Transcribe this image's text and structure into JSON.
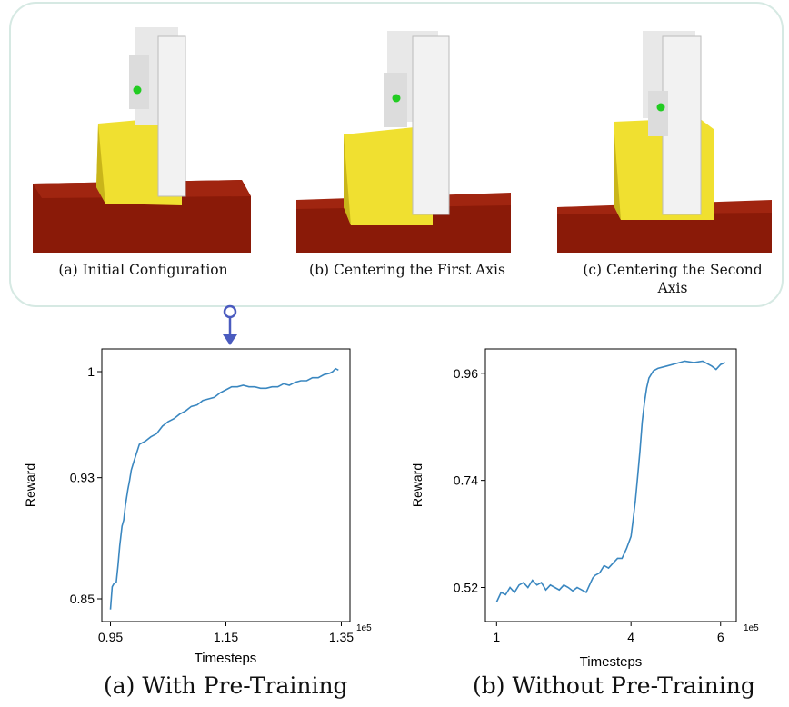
{
  "panels": [
    {
      "caption": "(a) Initial Configuration"
    },
    {
      "caption": "(b) Centering the First Axis"
    },
    {
      "caption": "(c) Centering the Second Axis"
    }
  ],
  "colors": {
    "line": "#3a87c0",
    "arrow": "#4a5bbf",
    "panel_border": "#d6e9e3",
    "cube": "#f0e030",
    "table": "#8a1a08",
    "gripper": "#e8e8e8"
  },
  "chart_data": [
    {
      "type": "line",
      "title": "",
      "xlabel": "Timesteps",
      "ylabel": "Reward",
      "x_multiplier_label": "1e5",
      "xlim": [
        0.935,
        1.365
      ],
      "ylim": [
        0.835,
        1.015
      ],
      "xticks": [
        0.95,
        1.15,
        1.35
      ],
      "xtick_labels": [
        "0.95",
        "1.15",
        "1.35"
      ],
      "yticks": [
        0.85,
        0.93,
        1.0
      ],
      "ytick_labels": [
        "0.85",
        "0.93",
        "1"
      ],
      "series": [
        {
          "x": [
            0.95,
            0.953,
            0.956,
            0.96,
            0.963,
            0.966,
            0.97,
            0.973,
            0.976,
            0.98,
            0.983,
            0.986,
            0.99,
            0.995,
            1.0,
            1.005,
            1.01,
            1.02,
            1.03,
            1.04,
            1.05,
            1.06,
            1.07,
            1.08,
            1.09,
            1.1,
            1.11,
            1.12,
            1.13,
            1.14,
            1.15,
            1.16,
            1.17,
            1.18,
            1.19,
            1.2,
            1.21,
            1.22,
            1.23,
            1.24,
            1.25,
            1.26,
            1.27,
            1.28,
            1.29,
            1.3,
            1.31,
            1.32,
            1.33,
            1.335,
            1.34,
            1.345
          ],
          "y": [
            0.843,
            0.858,
            0.86,
            0.861,
            0.872,
            0.885,
            0.898,
            0.902,
            0.912,
            0.922,
            0.928,
            0.935,
            0.94,
            0.946,
            0.952,
            0.953,
            0.954,
            0.957,
            0.959,
            0.964,
            0.967,
            0.969,
            0.972,
            0.974,
            0.977,
            0.978,
            0.981,
            0.982,
            0.983,
            0.986,
            0.988,
            0.99,
            0.99,
            0.991,
            0.99,
            0.99,
            0.989,
            0.989,
            0.99,
            0.99,
            0.992,
            0.991,
            0.993,
            0.994,
            0.994,
            0.996,
            0.996,
            0.998,
            0.999,
            1.0,
            1.002,
            1.001
          ]
        }
      ]
    },
    {
      "type": "line",
      "title": "",
      "xlabel": "Timesteps",
      "ylabel": "Reward",
      "x_multiplier_label": "1e5",
      "xlim": [
        0.75,
        6.35
      ],
      "ylim": [
        0.45,
        1.01
      ],
      "xticks": [
        1,
        4,
        6
      ],
      "xtick_labels": [
        "1",
        "4",
        "6"
      ],
      "yticks": [
        0.52,
        0.74,
        0.96
      ],
      "ytick_labels": [
        "0.52",
        "0.74",
        "0.96"
      ],
      "series": [
        {
          "x": [
            1.0,
            1.1,
            1.2,
            1.3,
            1.4,
            1.5,
            1.6,
            1.7,
            1.8,
            1.9,
            2.0,
            2.1,
            2.2,
            2.3,
            2.4,
            2.5,
            2.6,
            2.7,
            2.8,
            2.9,
            3.0,
            3.1,
            3.15,
            3.2,
            3.3,
            3.4,
            3.5,
            3.6,
            3.7,
            3.8,
            3.9,
            4.0,
            4.05,
            4.1,
            4.15,
            4.2,
            4.25,
            4.3,
            4.35,
            4.4,
            4.5,
            4.6,
            4.8,
            5.0,
            5.2,
            5.4,
            5.6,
            5.8,
            5.9,
            6.0,
            6.1
          ],
          "y": [
            0.49,
            0.51,
            0.505,
            0.52,
            0.51,
            0.525,
            0.53,
            0.52,
            0.535,
            0.525,
            0.53,
            0.515,
            0.525,
            0.52,
            0.515,
            0.525,
            0.52,
            0.513,
            0.52,
            0.515,
            0.51,
            0.53,
            0.54,
            0.545,
            0.55,
            0.565,
            0.56,
            0.57,
            0.58,
            0.58,
            0.6,
            0.625,
            0.66,
            0.7,
            0.75,
            0.8,
            0.86,
            0.9,
            0.93,
            0.95,
            0.965,
            0.97,
            0.975,
            0.98,
            0.985,
            0.982,
            0.985,
            0.975,
            0.968,
            0.978,
            0.982
          ]
        }
      ]
    }
  ],
  "captions": [
    "(a) With Pre-Training",
    "(b) Without Pre-Training"
  ]
}
